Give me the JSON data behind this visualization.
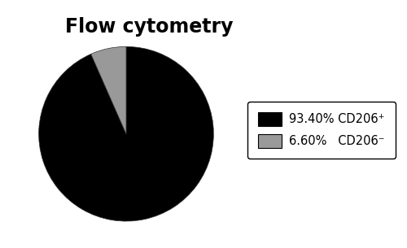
{
  "title": "Flow cytometry",
  "slices": [
    93.4,
    6.6
  ],
  "colors": [
    "#000000",
    "#999999"
  ],
  "labels": [
    "93.40% CD206⁺",
    "6.60%   CD206⁻"
  ],
  "startangle": 90,
  "background_color": "#ffffff",
  "title_fontsize": 17,
  "title_fontweight": "bold",
  "legend_fontsize": 10.5
}
